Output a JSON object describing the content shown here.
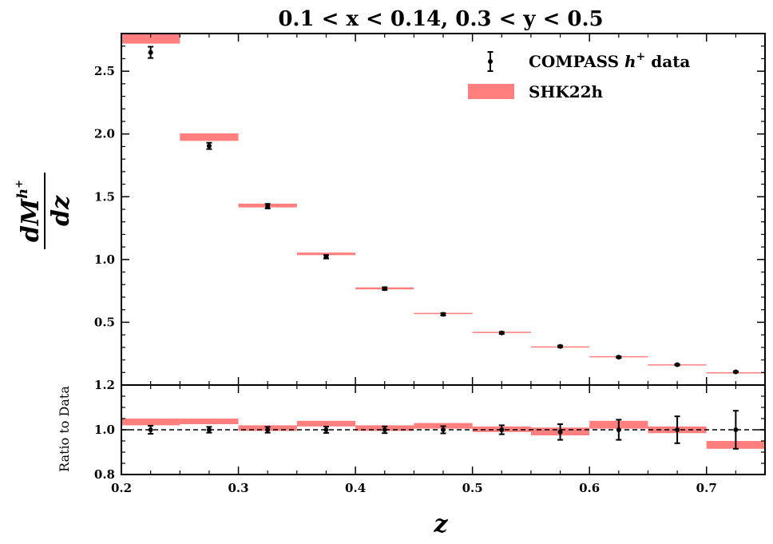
{
  "chart_data": {
    "type": "scatter",
    "title": "0.1 < x < 0.14, 0.3 < y < 0.5",
    "xlabel": "z",
    "ylabel": {
      "numerator": "dM",
      "superscript": "h+",
      "denominator": "dz"
    },
    "ratio_ylabel": "Ratio to Data",
    "xlim": [
      0.2,
      0.75
    ],
    "ylim_main": [
      0.0,
      2.8
    ],
    "ylim_ratio": [
      0.8,
      1.2
    ],
    "x_ticks": [
      "0.2",
      "0.3",
      "0.4",
      "0.5",
      "0.6",
      "0.7"
    ],
    "x_tick_values": [
      0.2,
      0.3,
      0.4,
      0.5,
      0.6,
      0.7
    ],
    "main_y_ticks": [
      "0.5",
      "1.0",
      "1.5",
      "2.0",
      "2.5"
    ],
    "main_y_tick_values": [
      0.5,
      1.0,
      1.5,
      2.0,
      2.5
    ],
    "ratio_y_ticks": [
      "0.8",
      "1.0",
      "1.2"
    ],
    "ratio_y_tick_values": [
      0.8,
      1.0,
      1.2
    ],
    "legend": {
      "position": "top-right",
      "entries": [
        {
          "label": "COMPASS h+ data",
          "base": "COMPASS ",
          "italic": "h",
          "sup": "+",
          "rest": " data",
          "marker": "errorbar"
        },
        {
          "label": "SHK22h",
          "marker": "band"
        }
      ]
    },
    "colors": {
      "band": "#ff7f7f",
      "data": "#000000",
      "reference": "#000000"
    },
    "series": [
      {
        "name": "COMPASS h+ data",
        "x": [
          0.225,
          0.275,
          0.325,
          0.375,
          0.425,
          0.475,
          0.525,
          0.575,
          0.625,
          0.675,
          0.725
        ],
        "y": [
          2.65,
          1.905,
          1.425,
          1.022,
          0.768,
          0.563,
          0.415,
          0.308,
          0.222,
          0.162,
          0.105
        ],
        "yerr": [
          0.045,
          0.025,
          0.018,
          0.014,
          0.011,
          0.009,
          0.008,
          0.007,
          0.006,
          0.005,
          0.005
        ]
      },
      {
        "name": "SHK22h",
        "bins": [
          [
            0.2,
            0.25
          ],
          [
            0.25,
            0.3
          ],
          [
            0.3,
            0.35
          ],
          [
            0.35,
            0.4
          ],
          [
            0.4,
            0.45
          ],
          [
            0.45,
            0.5
          ],
          [
            0.5,
            0.55
          ],
          [
            0.55,
            0.6
          ],
          [
            0.6,
            0.65
          ],
          [
            0.65,
            0.7
          ],
          [
            0.7,
            0.75
          ]
        ],
        "low": [
          2.72,
          1.945,
          1.415,
          1.035,
          0.762,
          0.565,
          0.418,
          0.304,
          0.226,
          0.161,
          0.098
        ],
        "high": [
          2.8,
          2.005,
          1.445,
          1.055,
          0.778,
          0.575,
          0.424,
          0.308,
          0.23,
          0.165,
          0.102
        ]
      }
    ],
    "ratio": {
      "data_y": [
        1.0,
        1.0,
        1.0,
        1.0,
        1.0,
        1.0,
        1.0,
        0.99,
        1.0,
        1.0,
        1.0
      ],
      "data_err": [
        0.018,
        0.013,
        0.013,
        0.014,
        0.015,
        0.016,
        0.02,
        0.035,
        0.045,
        0.06,
        0.085
      ],
      "band_low": [
        1.02,
        1.025,
        0.995,
        1.015,
        0.995,
        1.005,
        0.99,
        0.975,
        1.005,
        0.985,
        0.915
      ],
      "band_high": [
        1.05,
        1.05,
        1.02,
        1.04,
        1.02,
        1.03,
        1.015,
        1.01,
        1.04,
        1.015,
        0.95
      ],
      "reference_y": 1.0
    }
  }
}
